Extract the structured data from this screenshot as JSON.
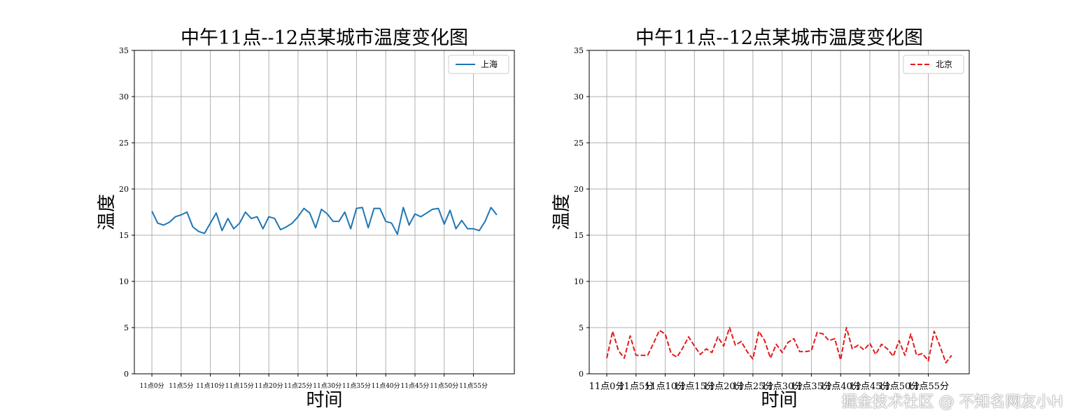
{
  "chart_data": [
    {
      "type": "line",
      "title": "中午11点--12点某城市温度变化图",
      "xlabel": "时间",
      "ylabel": "温度",
      "ylim": [
        0,
        35
      ],
      "yticks": [
        0,
        5,
        10,
        15,
        20,
        25,
        30,
        35
      ],
      "xlim": [
        -3,
        62
      ],
      "x_tick_positions": [
        0,
        5,
        10,
        15,
        20,
        25,
        30,
        35,
        40,
        45,
        50,
        55
      ],
      "x_tick_labels": [
        "11点0分",
        "11点5分",
        "11点10分",
        "11点15分",
        "11点20分",
        "11点25分",
        "11点30分",
        "11点35分",
        "11点40分",
        "11点45分",
        "11点50分",
        "11点55分"
      ],
      "grid": true,
      "legend_position": "upper right",
      "series": [
        {
          "name": "上海",
          "color": "#1f77b4",
          "style": "solid",
          "x": [
            0,
            1,
            2,
            3,
            4,
            5,
            6,
            7,
            8,
            9,
            10,
            11,
            12,
            13,
            14,
            15,
            16,
            17,
            18,
            19,
            20,
            21,
            22,
            23,
            24,
            25,
            26,
            27,
            28,
            29,
            30,
            31,
            32,
            33,
            34,
            35,
            36,
            37,
            38,
            39,
            40,
            41,
            42,
            43,
            44,
            45,
            46,
            47,
            48,
            49,
            50,
            51,
            52,
            53,
            54,
            55,
            56,
            57,
            58,
            59
          ],
          "values": [
            17.6,
            16.3,
            16.1,
            16.4,
            17.0,
            17.2,
            17.5,
            15.9,
            15.4,
            15.2,
            16.3,
            17.4,
            15.5,
            16.8,
            15.7,
            16.3,
            17.5,
            16.8,
            17.0,
            15.7,
            17.0,
            16.8,
            15.6,
            15.9,
            16.3,
            17.0,
            17.9,
            17.4,
            15.8,
            17.8,
            17.3,
            16.5,
            16.5,
            17.5,
            15.7,
            17.9,
            18.0,
            15.8,
            17.9,
            17.9,
            16.5,
            16.3,
            15.1,
            18.0,
            16.1,
            17.3,
            17.0,
            17.4,
            17.8,
            17.9,
            16.2,
            17.7,
            15.7,
            16.6,
            15.7,
            15.7,
            15.5,
            16.5,
            18.0,
            17.2
          ]
        },
        {
          "name": "北京",
          "color": "#e31a1c",
          "style": "dashed",
          "x": [
            0,
            1,
            2,
            3,
            4,
            5,
            6,
            7,
            8,
            9,
            10,
            11,
            12,
            13,
            14,
            15,
            16,
            17,
            18,
            19,
            20,
            21,
            22,
            23,
            24,
            25,
            26,
            27,
            28,
            29,
            30,
            31,
            32,
            33,
            34,
            35,
            36,
            37,
            38,
            39,
            40,
            41,
            42,
            43,
            44,
            45,
            46,
            47,
            48,
            49,
            50,
            51,
            52,
            53,
            54,
            55,
            56,
            57,
            58,
            59
          ],
          "values": [
            1.7,
            4.6,
            2.5,
            1.7,
            4.1,
            2.0,
            2.0,
            2.0,
            3.3,
            4.7,
            4.3,
            2.2,
            1.8,
            2.8,
            4.0,
            3.0,
            2.1,
            2.7,
            2.3,
            4.0,
            3.0,
            5.0,
            3.1,
            3.5,
            2.4,
            1.6,
            4.6,
            3.6,
            1.7,
            3.2,
            2.3,
            3.4,
            3.8,
            2.4,
            2.4,
            2.5,
            4.5,
            4.3,
            3.6,
            3.8,
            1.5,
            5.0,
            2.7,
            3.1,
            2.6,
            3.3,
            2.1,
            3.2,
            2.7,
            1.9,
            3.6,
            2.0,
            4.3,
            2.0,
            2.2,
            1.4,
            4.6,
            3.0,
            1.2,
            2.0
          ]
        }
      ]
    }
  ],
  "watermark": "掘金技术社区 @ 不知名网友小H"
}
